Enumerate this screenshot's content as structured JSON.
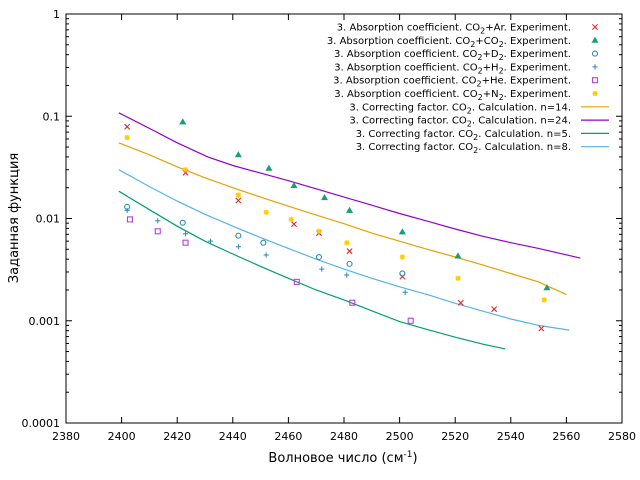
{
  "chart_data": {
    "type": "scatter",
    "title": "",
    "xlabel": "Волновое число (см",
    "xlabel_sup": "-1",
    "xlabel_end": ")",
    "ylabel": "Заданная функция",
    "xlim": [
      2380,
      2580
    ],
    "ylim": [
      0.0001,
      1
    ],
    "yscale": "log",
    "legend_position": "top-right",
    "x_ticks": [
      {
        "v": 2380,
        "label": "2380"
      },
      {
        "v": 2400,
        "label": "2400"
      },
      {
        "v": 2420,
        "label": "2420"
      },
      {
        "v": 2440,
        "label": "2440"
      },
      {
        "v": 2460,
        "label": "2460"
      },
      {
        "v": 2480,
        "label": "2480"
      },
      {
        "v": 2500,
        "label": "2500"
      },
      {
        "v": 2520,
        "label": "2520"
      },
      {
        "v": 2540,
        "label": "2540"
      },
      {
        "v": 2560,
        "label": "2560"
      },
      {
        "v": 2580,
        "label": "2580"
      }
    ],
    "y_ticks": [
      {
        "v": 0.0001,
        "label": "0.0001"
      },
      {
        "v": 0.001,
        "label": "0.001"
      },
      {
        "v": 0.01,
        "label": "0.01"
      },
      {
        "v": 0.1,
        "label": "0.1"
      },
      {
        "v": 1,
        "label": "1"
      }
    ],
    "series": [
      {
        "name": "3. Absorption coefficient. CO",
        "sub": "2",
        "name_end": "+Ar. Experiment.",
        "kind": "points",
        "marker": "x",
        "color": "#e8252a",
        "x": [
          2402,
          2423,
          2442,
          2462,
          2471,
          2482,
          2501,
          2522,
          2534,
          2551
        ],
        "y": [
          0.079,
          0.028,
          0.015,
          0.0088,
          0.0072,
          0.0048,
          0.0027,
          0.0015,
          0.0013,
          0.00084
        ]
      },
      {
        "name": "3. Absorption coefficient. CO",
        "sub": "2",
        "name_end": "+CO",
        "sub2": "2",
        "name_end2": ". Experiment.",
        "kind": "points",
        "marker": "triangle",
        "color": "#1a9e77",
        "x": [
          2422,
          2442,
          2453,
          2462,
          2473,
          2482,
          2501,
          2521,
          2553
        ],
        "y": [
          0.088,
          0.042,
          0.031,
          0.021,
          0.016,
          0.012,
          0.0074,
          0.0043,
          0.0021
        ]
      },
      {
        "name": "3. Absorption coefficient. CO",
        "sub": "2",
        "name_end": "+D",
        "sub2": "2",
        "name_end2": ". Experiment.",
        "kind": "points",
        "marker": "circle",
        "color": "#2a8ab5",
        "x": [
          2402,
          2422,
          2442,
          2451,
          2471,
          2482,
          2501
        ],
        "y": [
          0.013,
          0.0091,
          0.0068,
          0.0058,
          0.0042,
          0.0036,
          0.0029
        ]
      },
      {
        "name": "3. Absorption coefficient. CO",
        "sub": "2",
        "name_end": "+H",
        "sub2": "2",
        "name_end2": ". Experiment.",
        "kind": "points",
        "marker": "plus",
        "color": "#2a8ab5",
        "x": [
          2402,
          2413,
          2423,
          2432,
          2442,
          2452,
          2472,
          2481,
          2502
        ],
        "y": [
          0.012,
          0.0095,
          0.0071,
          0.006,
          0.0053,
          0.0044,
          0.0032,
          0.0028,
          0.0019
        ]
      },
      {
        "name": "3. Absorption coefficient. CO",
        "sub": "2",
        "name_end": "+He. Experiment.",
        "kind": "points",
        "marker": "square",
        "color": "#b642d6",
        "x": [
          2403,
          2413,
          2423,
          2463,
          2483,
          2504
        ],
        "y": [
          0.0098,
          0.0075,
          0.0058,
          0.0024,
          0.0015,
          0.001
        ]
      },
      {
        "name": "3. Absorption coefficient. CO",
        "sub": "2",
        "name_end": "+N",
        "sub2": "2",
        "name_end2": ". Experiment.",
        "kind": "points",
        "marker": "star",
        "color": "#ffcc00",
        "x": [
          2402,
          2423,
          2442,
          2452,
          2461,
          2471,
          2481,
          2501,
          2521,
          2552
        ],
        "y": [
          0.062,
          0.03,
          0.017,
          0.0115,
          0.0098,
          0.0075,
          0.0058,
          0.0042,
          0.0026,
          0.0016
        ]
      },
      {
        "name": "3. Correcting factor. CO",
        "sub": "2",
        "name_end": ". Calculation. n=14.",
        "kind": "line",
        "color": "#e8a000",
        "x": [
          2399,
          2410,
          2420,
          2430,
          2440,
          2450,
          2460,
          2470,
          2480,
          2490,
          2500,
          2510,
          2520,
          2530,
          2540,
          2550,
          2560
        ],
        "y": [
          0.055,
          0.042,
          0.032,
          0.025,
          0.02,
          0.0162,
          0.0132,
          0.0108,
          0.0089,
          0.0072,
          0.006,
          0.005,
          0.0042,
          0.0035,
          0.0029,
          0.0024,
          0.0018
        ]
      },
      {
        "name": "3. Correcting factor. CO",
        "sub": "2",
        "name_end": ". Calculation. n=24.",
        "kind": "line",
        "color": "#9400d3",
        "x": [
          2399,
          2410,
          2420,
          2431,
          2440,
          2450,
          2460,
          2470,
          2480,
          2490,
          2500,
          2510,
          2520,
          2530,
          2540,
          2550,
          2565
        ],
        "y": [
          0.108,
          0.076,
          0.055,
          0.04,
          0.033,
          0.0278,
          0.0234,
          0.0195,
          0.0162,
          0.0135,
          0.0112,
          0.0094,
          0.0079,
          0.0067,
          0.0058,
          0.0051,
          0.0041
        ]
      },
      {
        "name": "3. Correcting factor. CO",
        "sub": "2",
        "name_end": ". Calculation. n=5.",
        "kind": "line",
        "color": "#009e73",
        "x": [
          2399,
          2410,
          2420,
          2430,
          2440,
          2450,
          2460,
          2470,
          2480,
          2490,
          2500,
          2510,
          2520,
          2530,
          2538
        ],
        "y": [
          0.0185,
          0.0122,
          0.0084,
          0.006,
          0.0045,
          0.0034,
          0.0026,
          0.002,
          0.0016,
          0.00125,
          0.00098,
          0.00082,
          0.00069,
          0.00059,
          0.00053
        ]
      },
      {
        "name": "3. Correcting factor. CO",
        "sub": "2",
        "name_end": ". Calculation. n=8.",
        "kind": "line",
        "color": "#56b4e9",
        "x": [
          2399,
          2410,
          2420,
          2430,
          2440,
          2450,
          2460,
          2470,
          2480,
          2490,
          2500,
          2510,
          2520,
          2530,
          2540,
          2550,
          2561
        ],
        "y": [
          0.03,
          0.0205,
          0.0148,
          0.011,
          0.0084,
          0.0065,
          0.0051,
          0.004,
          0.0032,
          0.0026,
          0.00215,
          0.0018,
          0.00148,
          0.00124,
          0.00104,
          0.0009,
          0.00081
        ]
      }
    ]
  }
}
